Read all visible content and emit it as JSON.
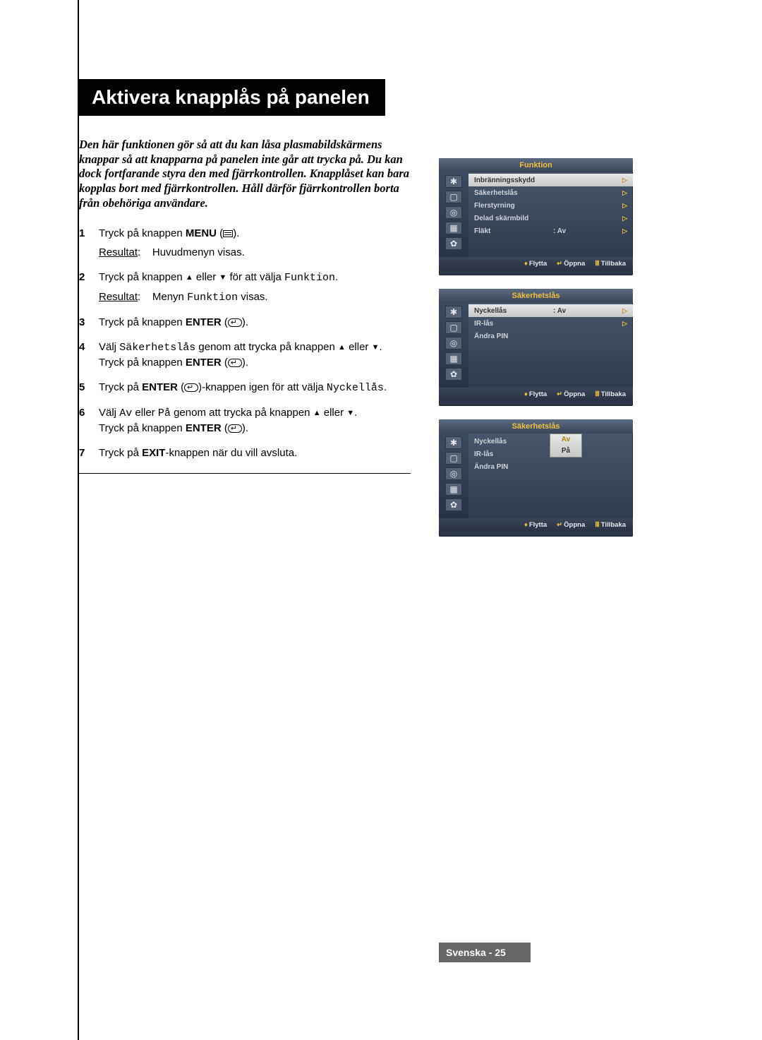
{
  "title": "Aktivera knapplås på panelen",
  "intro": "Den här funktionen gör så att du kan låsa plasmabildskärmens knappar så att knapparna på panelen inte går att trycka på. Du kan dock fortfarande styra den med fjärrkontrollen. Knapplåset kan bara kopplas bort med fjärrkontrollen. Håll därför fjärrkontrollen borta från obehöriga användare.",
  "steps": {
    "s1a": "Tryck på knappen ",
    "s1menu": "MENU",
    "s1b": " (",
    "s1c": ").",
    "s1r_label": "Resultat",
    "s1r_sep": ":",
    "s1r_text": "Huvudmenyn visas.",
    "s2a": "Tryck på knappen ",
    "s2b": " eller ",
    "s2c": " för att välja ",
    "s2funk": "Funktion",
    "s2d": ".",
    "s2r_label": "Resultat",
    "s2r_sep": ":",
    "s2r_text1": "Menyn ",
    "s2r_text2": "Funktion",
    "s2r_text3": " visas.",
    "s3a": "Tryck på knappen ",
    "s3enter": "ENTER",
    "s3b": " (",
    "s3c": ").",
    "s4a": "Välj ",
    "s4sak": "Säkerhetslås",
    "s4b": " genom att trycka på knappen ",
    "s4c": " eller ",
    "s4d": ".",
    "s4e": "Tryck på knappen ",
    "s4enter": "ENTER",
    "s4f": " (",
    "s4g": ").",
    "s5a": "Tryck på ",
    "s5enter": "ENTER",
    "s5b": " (",
    "s5c": ")-knappen igen för att välja ",
    "s5nyc": "Nyckellås",
    "s5d": ".",
    "s6a": "Välj ",
    "s6av": "Av",
    "s6b": " eller ",
    "s6pa": "På",
    "s6c": " genom att trycka på knappen ",
    "s6d": " eller ",
    "s6e": ".",
    "s6f": "Tryck på knappen ",
    "s6enter": "ENTER",
    "s6g": " (",
    "s6h": ").",
    "s7a": "Tryck på ",
    "s7exit": "EXIT",
    "s7b": "-knappen när du vill avsluta."
  },
  "osd": {
    "menu1": {
      "title": "Funktion",
      "items": [
        {
          "label": "Inbränningsskydd",
          "val": "",
          "arr": "▷",
          "sel": true
        },
        {
          "label": "Säkerhetslås",
          "val": "",
          "arr": "▷",
          "sel": false
        },
        {
          "label": "Flerstyrning",
          "val": "",
          "arr": "▷",
          "sel": false
        },
        {
          "label": "Delad skärmbild",
          "val": "",
          "arr": "▷",
          "sel": false
        },
        {
          "label": "Fläkt",
          "val": ": Av",
          "arr": "▷",
          "sel": false
        }
      ]
    },
    "menu2": {
      "title": "Säkerhetslås",
      "items": [
        {
          "label": "Nyckellås",
          "val": ": Av",
          "arr": "▷",
          "sel": true
        },
        {
          "label": "IR-lås",
          "val": "",
          "arr": "▷",
          "sel": false
        },
        {
          "label": "Ändra PIN",
          "val": "",
          "arr": "",
          "sel": false
        }
      ]
    },
    "menu3": {
      "title": "Säkerhetslås",
      "items": [
        {
          "label": "Nyckellås",
          "val": ":",
          "arr": "",
          "sel": false
        },
        {
          "label": "IR-lås",
          "val": "",
          "arr": "",
          "sel": false
        },
        {
          "label": "Ändra PIN",
          "val": "",
          "arr": "",
          "sel": false
        }
      ],
      "options": [
        "Av",
        "På"
      ],
      "opt_sel": 0
    },
    "footer": {
      "move": "Flytta",
      "open": "Öppna",
      "back": "Tillbaka"
    },
    "side_icons": [
      "✱",
      "▢",
      "◎",
      "▦",
      "✿"
    ]
  },
  "page_footer": "Svenska - 25",
  "colors": {
    "title_bg": "#000000",
    "osd_accent": "#f0c040",
    "footer_bg": "#666666"
  }
}
